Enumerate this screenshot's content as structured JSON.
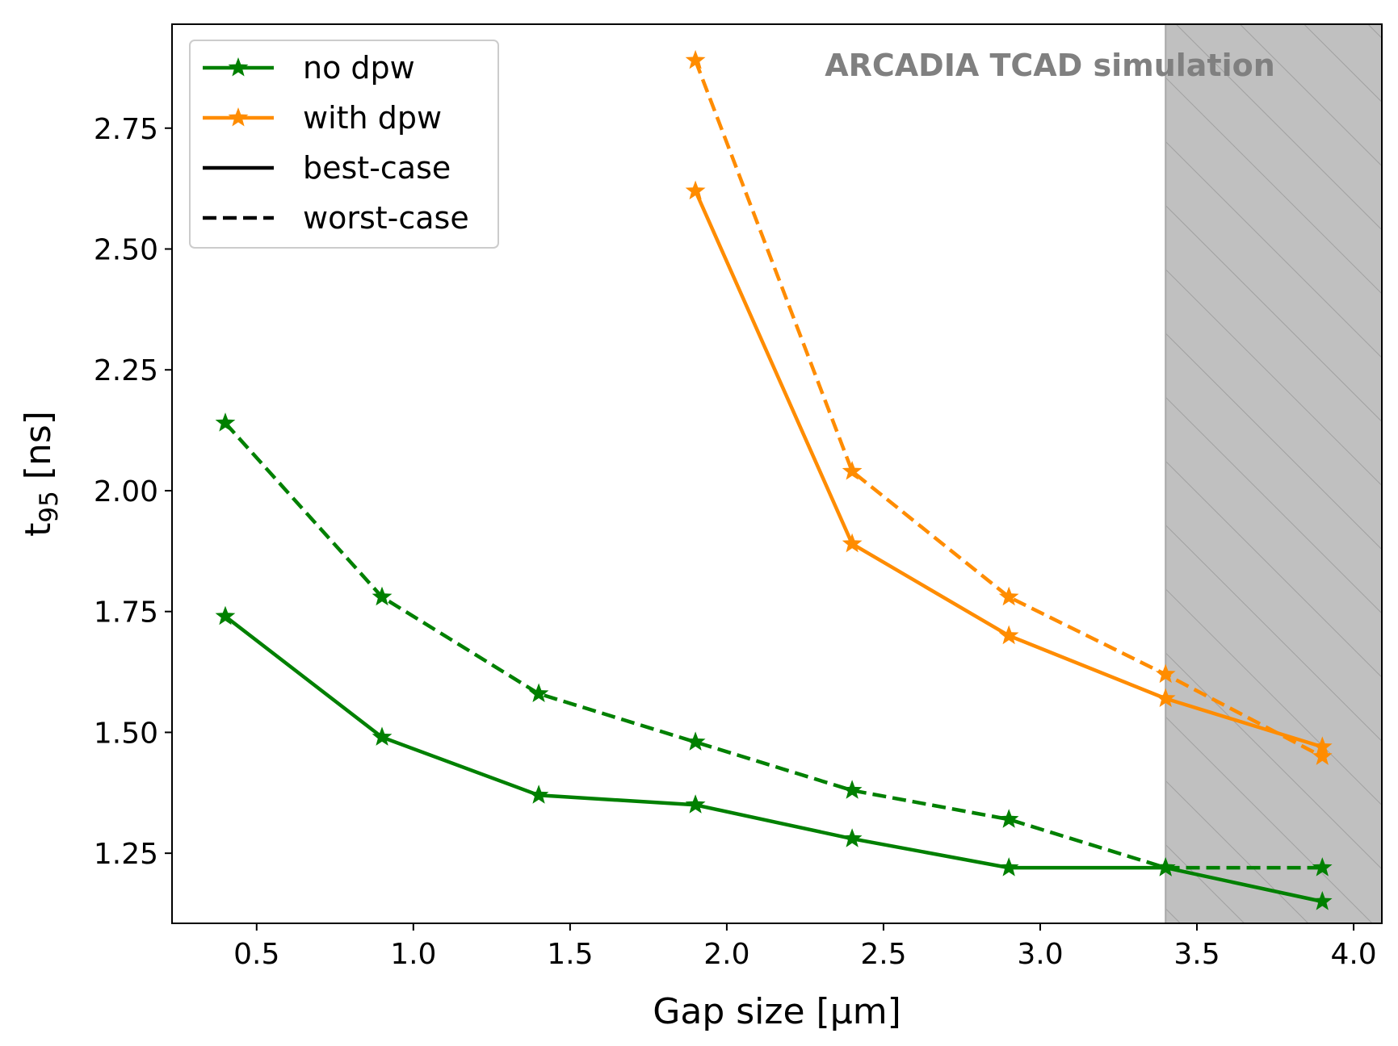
{
  "chart_data": {
    "type": "line",
    "title": "",
    "xlabel": "Gap size [μm]",
    "ylabel_main": "t",
    "ylabel_sub": "95",
    "ylabel_unit": " [ns]",
    "xlim": [
      0.23,
      4.09
    ],
    "ylim": [
      1.105,
      2.965
    ],
    "xticks": [
      0.5,
      1.0,
      1.5,
      2.0,
      2.5,
      3.0,
      3.5,
      4.0
    ],
    "xtick_labels": [
      "0.5",
      "1.0",
      "1.5",
      "2.0",
      "2.5",
      "3.0",
      "3.5",
      "4.0"
    ],
    "yticks": [
      1.25,
      1.5,
      1.75,
      2.0,
      2.25,
      2.5,
      2.75
    ],
    "ytick_labels": [
      "1.25",
      "1.50",
      "1.75",
      "2.00",
      "2.25",
      "2.50",
      "2.75"
    ],
    "shaded_region": {
      "x_from": 3.4,
      "x_to": 4.09,
      "fill": "#c0c0c0",
      "hatch": "/"
    },
    "annotation": "ARCADIA TCAD simulation",
    "series": [
      {
        "name": "no dpw best-case",
        "color": "#008000",
        "dash": "solid",
        "x": [
          0.4,
          0.9,
          1.4,
          1.9,
          2.4,
          2.9,
          3.4,
          3.9
        ],
        "values": [
          1.74,
          1.49,
          1.37,
          1.35,
          1.28,
          1.22,
          1.22,
          1.15
        ]
      },
      {
        "name": "no dpw worst-case",
        "color": "#008000",
        "dash": "dashed",
        "x": [
          0.4,
          0.9,
          1.4,
          1.9,
          2.4,
          2.9,
          3.4,
          3.9
        ],
        "values": [
          2.14,
          1.78,
          1.58,
          1.48,
          1.38,
          1.32,
          1.22,
          1.22
        ]
      },
      {
        "name": "with dpw best-case",
        "color": "#ff8c00",
        "dash": "solid",
        "x": [
          1.9,
          2.4,
          2.9,
          3.4,
          3.9
        ],
        "values": [
          2.62,
          1.89,
          1.7,
          1.57,
          1.47
        ]
      },
      {
        "name": "with dpw worst-case",
        "color": "#ff8c00",
        "dash": "dashed",
        "x": [
          1.9,
          2.4,
          2.9,
          3.4,
          3.9
        ],
        "values": [
          2.89,
          2.04,
          1.78,
          1.62,
          1.45
        ]
      }
    ],
    "legend": {
      "position": "top-left",
      "entries": [
        {
          "label": "no dpw",
          "color": "#008000",
          "dash": "solid",
          "marker": "star"
        },
        {
          "label": "with dpw",
          "color": "#ff8c00",
          "dash": "solid",
          "marker": "star"
        },
        {
          "label": "best-case",
          "color": "#000000",
          "dash": "solid",
          "marker": "none"
        },
        {
          "label": "worst-case",
          "color": "#000000",
          "dash": "dashed",
          "marker": "none"
        }
      ]
    }
  }
}
